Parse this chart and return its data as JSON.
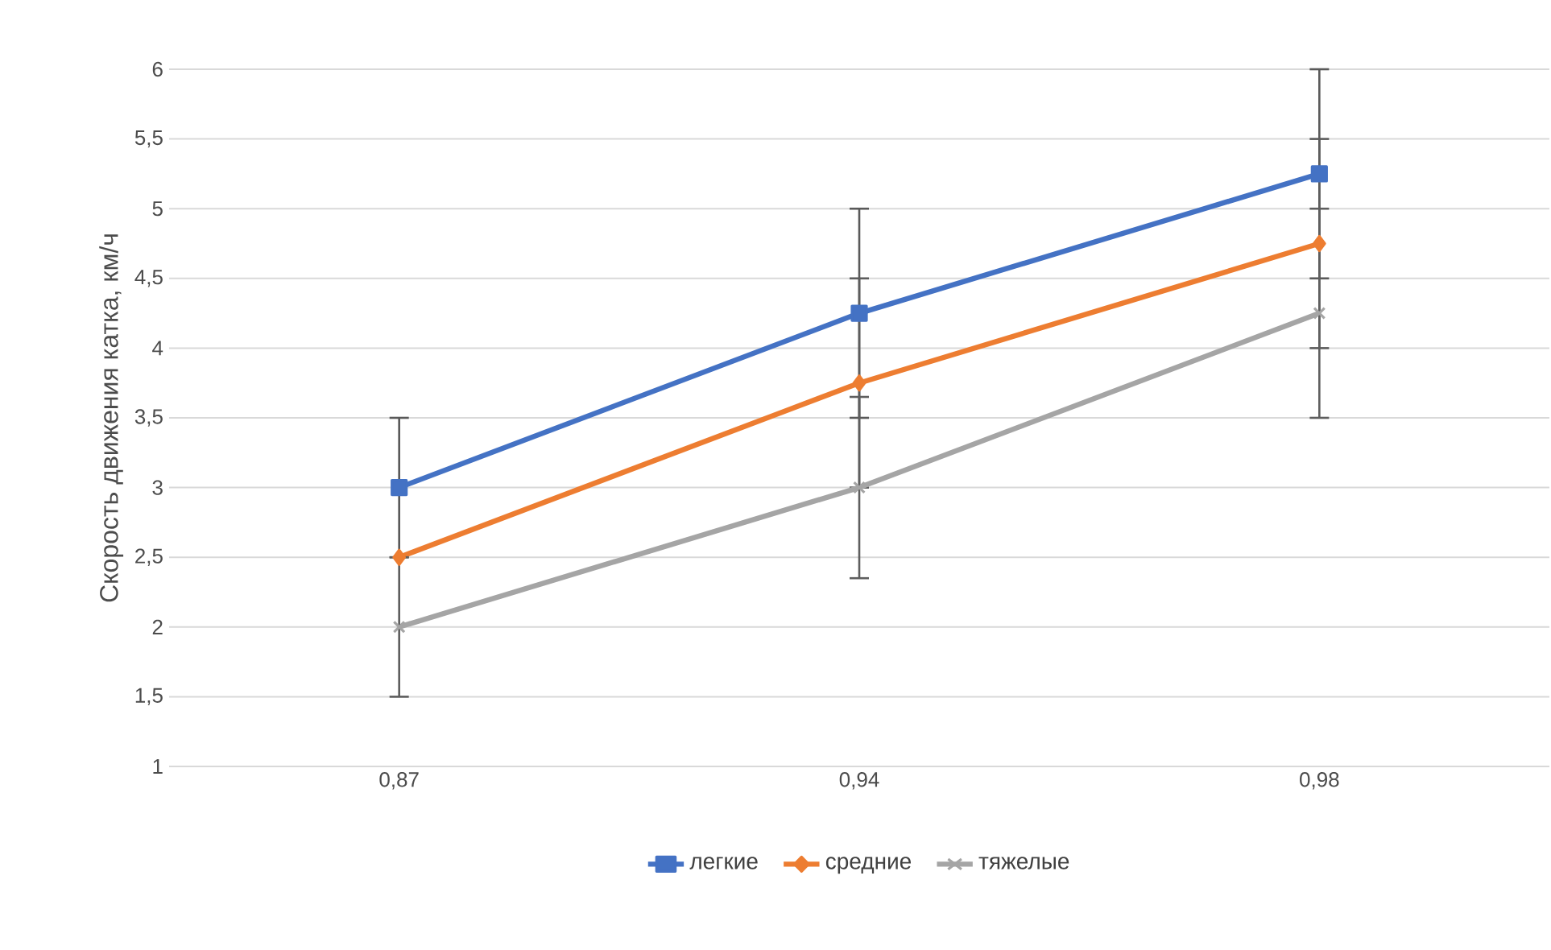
{
  "chart_data": {
    "type": "line",
    "ylabel": "Скорость движения катка, км/ч",
    "categories": [
      "0,87",
      "0,94",
      "0,98"
    ],
    "series": [
      {
        "name": "легкие",
        "color": "#4472c4",
        "marker": "square",
        "values": [
          3,
          4.25,
          5.25
        ],
        "errors": [
          0.5,
          0.75,
          0.75
        ]
      },
      {
        "name": "средние",
        "color": "#ed7d31",
        "marker": "diamond",
        "values": [
          2.5,
          3.75,
          4.75
        ],
        "errors": [
          null,
          0.75,
          0.75
        ]
      },
      {
        "name": "тяжелые",
        "color": "#a5a5a5",
        "marker": "cross",
        "values": [
          2,
          3,
          4.25
        ],
        "errors": [
          0.5,
          0.65,
          0.75
        ]
      }
    ],
    "ylim": [
      1,
      6
    ],
    "yticks": [
      1,
      {
        "value": 1.5,
        "label": "1,5"
      },
      2,
      {
        "value": 2.5,
        "label": "2,5"
      },
      3,
      {
        "value": 3.5,
        "label": "3,5"
      },
      4,
      {
        "value": 4.5,
        "label": "4,5"
      },
      5,
      {
        "value": 5.5,
        "label": "5,5"
      },
      6
    ],
    "grid": "y",
    "legend": "bottom",
    "line_style": "solid"
  }
}
